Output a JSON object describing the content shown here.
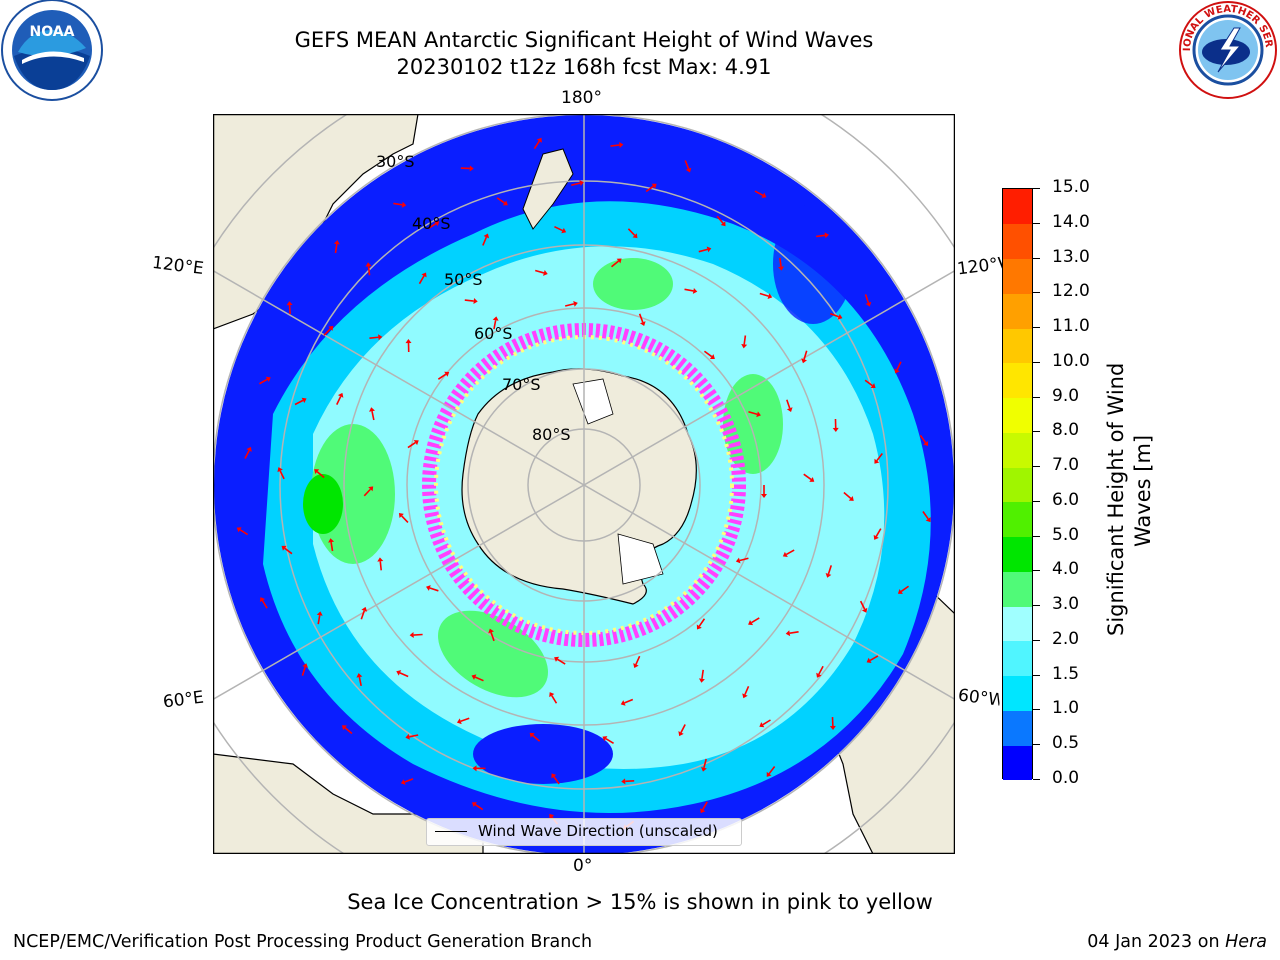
{
  "title_line1": "GEFS MEAN Antarctic Significant Height of Wind Waves",
  "title_line2": "20230102 t12z 168h fcst   Max: 4.91",
  "longitude_labels": {
    "top": "180°",
    "bottom": "0°",
    "left_upper": "120°E",
    "left_lower": "60°E",
    "right_upper": "120°W",
    "right_lower": "60°W"
  },
  "latitude_labels": [
    "30°S",
    "40°S",
    "50°S",
    "60°S",
    "70°S",
    "80°S"
  ],
  "legend_label": "Wind Wave Direction (unscaled)",
  "caption": "Sea Ice Concentration > 15% is shown in pink to yellow",
  "footer_left": "NCEP/EMC/Verification Post Processing Product Generation Branch",
  "footer_right_date": "04 Jan 2023 on",
  "footer_right_host": "Hera",
  "colorbar": {
    "title_line1": "Significant Height of Wind",
    "title_line2": "Waves [m]",
    "ticks": [
      "0.0",
      "0.5",
      "1.0",
      "1.5",
      "2.0",
      "3.0",
      "4.0",
      "5.0",
      "6.0",
      "7.0",
      "8.0",
      "9.0",
      "10.0",
      "11.0",
      "12.0",
      "13.0",
      "14.0",
      "15.0"
    ],
    "colors": [
      "#0000ff",
      "#0a78ff",
      "#00e6ff",
      "#50f5ff",
      "#a0ffff",
      "#50fa78",
      "#00e600",
      "#50f000",
      "#a0f500",
      "#c8fa00",
      "#f0ff00",
      "#ffe600",
      "#ffc800",
      "#ffa000",
      "#ff7800",
      "#ff5000",
      "#ff1e00"
    ]
  },
  "logos": {
    "noaa_text": "NOAA",
    "nws_text": "NATIONAL WEATHER SERVICE"
  },
  "map_colors": {
    "land": "#efecdc",
    "ocean_low": "#0000ff",
    "ocean_mid": "#00e6ff",
    "ocean_high": "#50fa78",
    "sea_ice": "#ff40ff",
    "arrow": "#ff0000",
    "grid": "#b4b4b4"
  }
}
